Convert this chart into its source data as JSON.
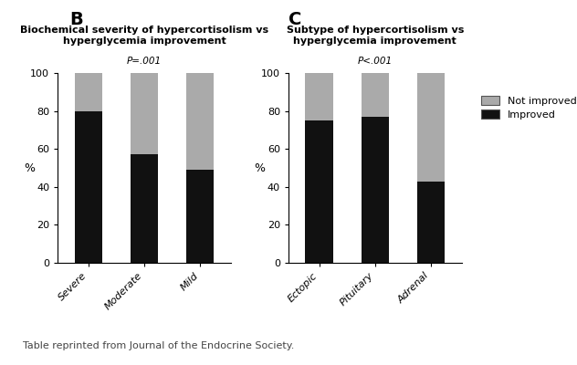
{
  "panel_B": {
    "label": "B",
    "title": "Biochemical severity of hypercortisolism vs\nhyperglycemia improvement",
    "pvalue": "P=.001",
    "categories": [
      "Severe",
      "Moderate",
      "Mild"
    ],
    "improved": [
      80,
      57,
      49
    ],
    "not_improved": [
      20,
      43,
      51
    ]
  },
  "panel_C": {
    "label": "C",
    "title": "Subtype of hypercortisolism vs\nhyperglycemia improvement",
    "pvalue": "P<.001",
    "categories": [
      "Ectopic",
      "Pituitary",
      "Adrenal"
    ],
    "improved": [
      75,
      77,
      43
    ],
    "not_improved": [
      25,
      23,
      57
    ]
  },
  "legend": {
    "not_improved_label": "Not improved",
    "improved_label": "Improved",
    "not_improved_color": "#aaaaaa",
    "improved_color": "#111111"
  },
  "ylabel": "%",
  "ylim": [
    0,
    100
  ],
  "yticks": [
    0,
    20,
    40,
    60,
    80,
    100
  ],
  "bar_width": 0.5,
  "bar_color_improved": "#111111",
  "bar_color_not_improved": "#aaaaaa",
  "background_color": "#ffffff",
  "footer": "Table reprinted from Journal of the Endocrine Society."
}
